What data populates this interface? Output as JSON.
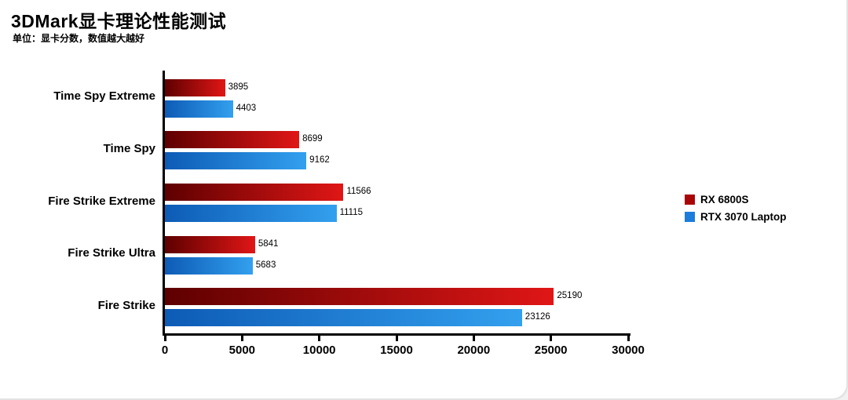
{
  "page": {
    "title": "3DMark显卡理论性能测试",
    "subtitle": "单位：显卡分数，数值越大越好"
  },
  "chart_data": {
    "type": "bar",
    "orientation": "horizontal",
    "title": "3DMark显卡理论性能测试",
    "subtitle": "单位：显卡分数，数值越大越好",
    "categories": [
      "Time Spy Extreme",
      "Time Spy",
      "Fire Strike Extreme",
      "Fire Strike Ultra",
      "Fire Strike"
    ],
    "series": [
      {
        "name": "RX 6800S",
        "color": "#a80606",
        "color_dark": "#5e0000",
        "color_bright": "#e01616",
        "values": [
          3895,
          8699,
          11566,
          5841,
          25190
        ]
      },
      {
        "name": "RTX 3070 Laptop",
        "color": "#1d7cdb",
        "color_dark": "#0d5bb5",
        "color_bright": "#33a0ee",
        "values": [
          4403,
          9162,
          11115,
          5683,
          23126
        ]
      }
    ],
    "xlim": [
      0,
      30000
    ],
    "x_ticks": [
      0,
      5000,
      10000,
      15000,
      20000,
      25000,
      30000
    ],
    "grid": false,
    "legend_position": "right"
  }
}
